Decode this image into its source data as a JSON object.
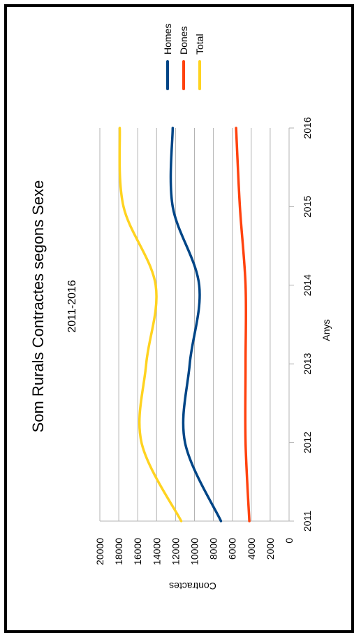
{
  "chart_data": {
    "type": "line",
    "title": "Som Rurals Contractes segons Sexe",
    "subtitle": "2011-2016",
    "xlabel": "Anys",
    "ylabel": "Contractes",
    "x": [
      "2011",
      "2012",
      "2013",
      "2014",
      "2015",
      "2016"
    ],
    "ylim": [
      0,
      20000
    ],
    "y_ticks": [
      "0",
      "2000",
      "4000",
      "6000",
      "8000",
      "10000",
      "12000",
      "14000",
      "16000",
      "18000",
      "20000"
    ],
    "grid": true,
    "legend_position": "top-right",
    "series": [
      {
        "name": "Homes",
        "color": "#004586",
        "values": [
          7200,
          11000,
          10500,
          9500,
          12300,
          12300
        ]
      },
      {
        "name": "Dones",
        "color": "#ff420e",
        "values": [
          4200,
          4600,
          4600,
          4600,
          5200,
          5600
        ]
      },
      {
        "name": "Total",
        "color": "#ffd320",
        "values": [
          11400,
          15600,
          15100,
          14100,
          17500,
          17900
        ]
      }
    ]
  }
}
